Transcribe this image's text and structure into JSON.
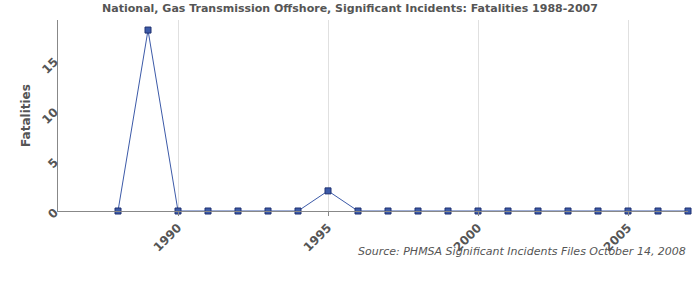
{
  "chart_data": {
    "type": "line",
    "title": "National, Gas Transmission Offshore, Significant Incidents: Fatalities 1988-2007",
    "y_label": "Fatalities",
    "annotations": [
      "Source: PHMSA Significant Incidents Files October 14, 2008"
    ],
    "x": [
      1988,
      1989,
      1990,
      1991,
      1992,
      1993,
      1994,
      1995,
      1996,
      1997,
      1998,
      1999,
      2000,
      2001,
      2002,
      2003,
      2004,
      2005,
      2006,
      2007
    ],
    "values": [
      0,
      18,
      0,
      0,
      0,
      0,
      0,
      2,
      0,
      0,
      0,
      0,
      0,
      0,
      0,
      0,
      0,
      0,
      0,
      0
    ],
    "xlim": [
      1986,
      2007
    ],
    "ylim": [
      0,
      19
    ],
    "xticks": [
      1990,
      1995,
      2000,
      2005
    ],
    "yticks": [
      0,
      5,
      10,
      15
    ],
    "grid": true,
    "color": "#3c5aa8",
    "marker": "square",
    "line_style": "solid"
  }
}
